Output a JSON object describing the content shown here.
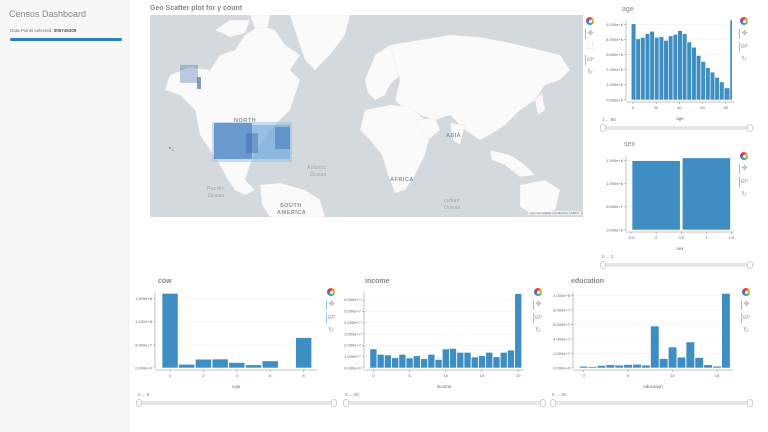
{
  "sidebar": {
    "title": "Census Dashboard",
    "selected_label": "Data Points selected:",
    "selected_value": "306745309",
    "progress_color": "#2d7fc1"
  },
  "map": {
    "title": "Geo Scatter plot for y count",
    "labels": {
      "north_america": "NORTH",
      "asia": "ASIA",
      "africa": "AFRICA",
      "south_america_1": "SOUTH",
      "south_america_2": "AMERICA",
      "atlantic_1": "Atlantic",
      "atlantic_2": "Ocean",
      "pacific_1": "Pacific",
      "pacific_2": "Ocean",
      "indian_1": "Indian",
      "indian_2": "Ocean"
    },
    "attribution": "OpenStreetMap  contributors  CARTO",
    "toolbar": [
      "bokeh-logo",
      "pan-icon",
      "box-select-icon",
      "wheel-zoom-icon",
      "reset-icon"
    ]
  },
  "colors": {
    "bar": "#3e8ec4",
    "bar_stroke": "#ffffff",
    "map_water": "#d4d9dd",
    "map_land": "#fafafa",
    "points_dark": "#1f4e9c",
    "points_light": "#8fbde6"
  },
  "charts": {
    "age": {
      "title": "age",
      "xlabel": "age",
      "yticks": [
        "0.000e+0",
        "1.000e+6",
        "2.000e+6",
        "3.000e+6",
        "4.000e+6",
        "5.000e+6"
      ],
      "xticks": [
        "0",
        "20",
        "40",
        "60",
        "80"
      ],
      "slider_label": "1 ... 85"
    },
    "sex": {
      "title": "sex",
      "xlabel": "sex",
      "yticks": [
        "0.000e+0",
        "5.000e+7",
        "1.000e+8",
        "1.500e+8"
      ],
      "xticks": [
        "-0.5",
        "0",
        "0.5",
        "1",
        "1.5"
      ],
      "slider_label": "0 ... 1"
    },
    "cow": {
      "title": "cow",
      "xlabel": "cow",
      "yticks": [
        "0.000e+0",
        "5.000e+7",
        "1.000e+8",
        "1.500e+8"
      ],
      "xticks": [
        "0",
        "2",
        "4",
        "6",
        "8"
      ],
      "slider_label": "0 ... 8"
    },
    "income": {
      "title": "income",
      "xlabel": "income",
      "yticks": [
        "0.000e+0",
        "1.000e+7",
        "2.000e+7",
        "3.000e+7",
        "4.000e+7",
        "5.000e+7",
        "6.000e+7"
      ],
      "xticks": [
        "0",
        "5",
        "10",
        "15",
        "20"
      ],
      "slider_label": "0 ... 20"
    },
    "education": {
      "title": "education",
      "xlabel": "education",
      "yticks": [
        "0.000e+0",
        "2.000e+7",
        "4.000e+7",
        "6.000e+7",
        "8.000e+7",
        "1.000e+8"
      ],
      "xticks": [
        "0",
        "5",
        "10",
        "15"
      ],
      "slider_label": "0 ... 16"
    }
  },
  "chart_data": [
    {
      "type": "bar",
      "title": "age",
      "xlabel": "age",
      "ylabel": "",
      "x": [
        0,
        4,
        8,
        12,
        16,
        20,
        24,
        28,
        32,
        36,
        40,
        44,
        48,
        52,
        56,
        60,
        64,
        68,
        72,
        76,
        80,
        85
      ],
      "values": [
        5050000,
        4050000,
        4150000,
        4400000,
        4550000,
        4150000,
        4200000,
        3950000,
        4250000,
        4350000,
        4600000,
        4400000,
        3850000,
        3500000,
        2950000,
        2550000,
        2150000,
        1850000,
        1500000,
        1200000,
        800000,
        5300000
      ],
      "xlim": [
        -3,
        88
      ],
      "ylim": [
        0,
        5300000
      ]
    },
    {
      "type": "bar",
      "title": "sex",
      "xlabel": "sex",
      "ylabel": "",
      "categories": [
        0,
        1
      ],
      "values": [
        150000000,
        156000000
      ],
      "xlim": [
        -0.55,
        1.55
      ],
      "ylim": [
        0,
        160000000
      ]
    },
    {
      "type": "bar",
      "title": "cow",
      "xlabel": "cow",
      "ylabel": "",
      "categories": [
        0,
        1,
        2,
        3,
        4,
        5,
        6,
        7,
        8
      ],
      "values": [
        162000000,
        8000000,
        19000000,
        19500000,
        12000000,
        7000000,
        15500000,
        1000000,
        66000000
      ],
      "ylim": [
        0,
        165000000
      ]
    },
    {
      "type": "bar",
      "title": "income",
      "xlabel": "income",
      "ylabel": "",
      "categories": [
        0,
        1,
        2,
        3,
        4,
        5,
        6,
        7,
        8,
        9,
        10,
        11,
        12,
        13,
        14,
        15,
        16,
        17,
        18,
        19,
        20
      ],
      "values": [
        16800000,
        12000000,
        11500000,
        9000000,
        12000000,
        8800000,
        10800000,
        8200000,
        12000000,
        7500000,
        16800000,
        17200000,
        13800000,
        13800000,
        9700000,
        10800000,
        13800000,
        9800000,
        13800000,
        15800000,
        65500000
      ],
      "ylim": [
        0,
        67000000
      ]
    },
    {
      "type": "bar",
      "title": "education",
      "xlabel": "education",
      "ylabel": "",
      "categories": [
        0,
        1,
        2,
        3,
        4,
        5,
        6,
        7,
        8,
        9,
        10,
        11,
        12,
        13,
        14,
        15,
        16
      ],
      "values": [
        2500000,
        2000000,
        3500000,
        4500000,
        4000000,
        4800000,
        5000000,
        4000000,
        58000000,
        13000000,
        29000000,
        15000000,
        36000000,
        14500000,
        4500000,
        2500000,
        103000000
      ],
      "ylim": [
        0,
        105000000
      ]
    }
  ]
}
